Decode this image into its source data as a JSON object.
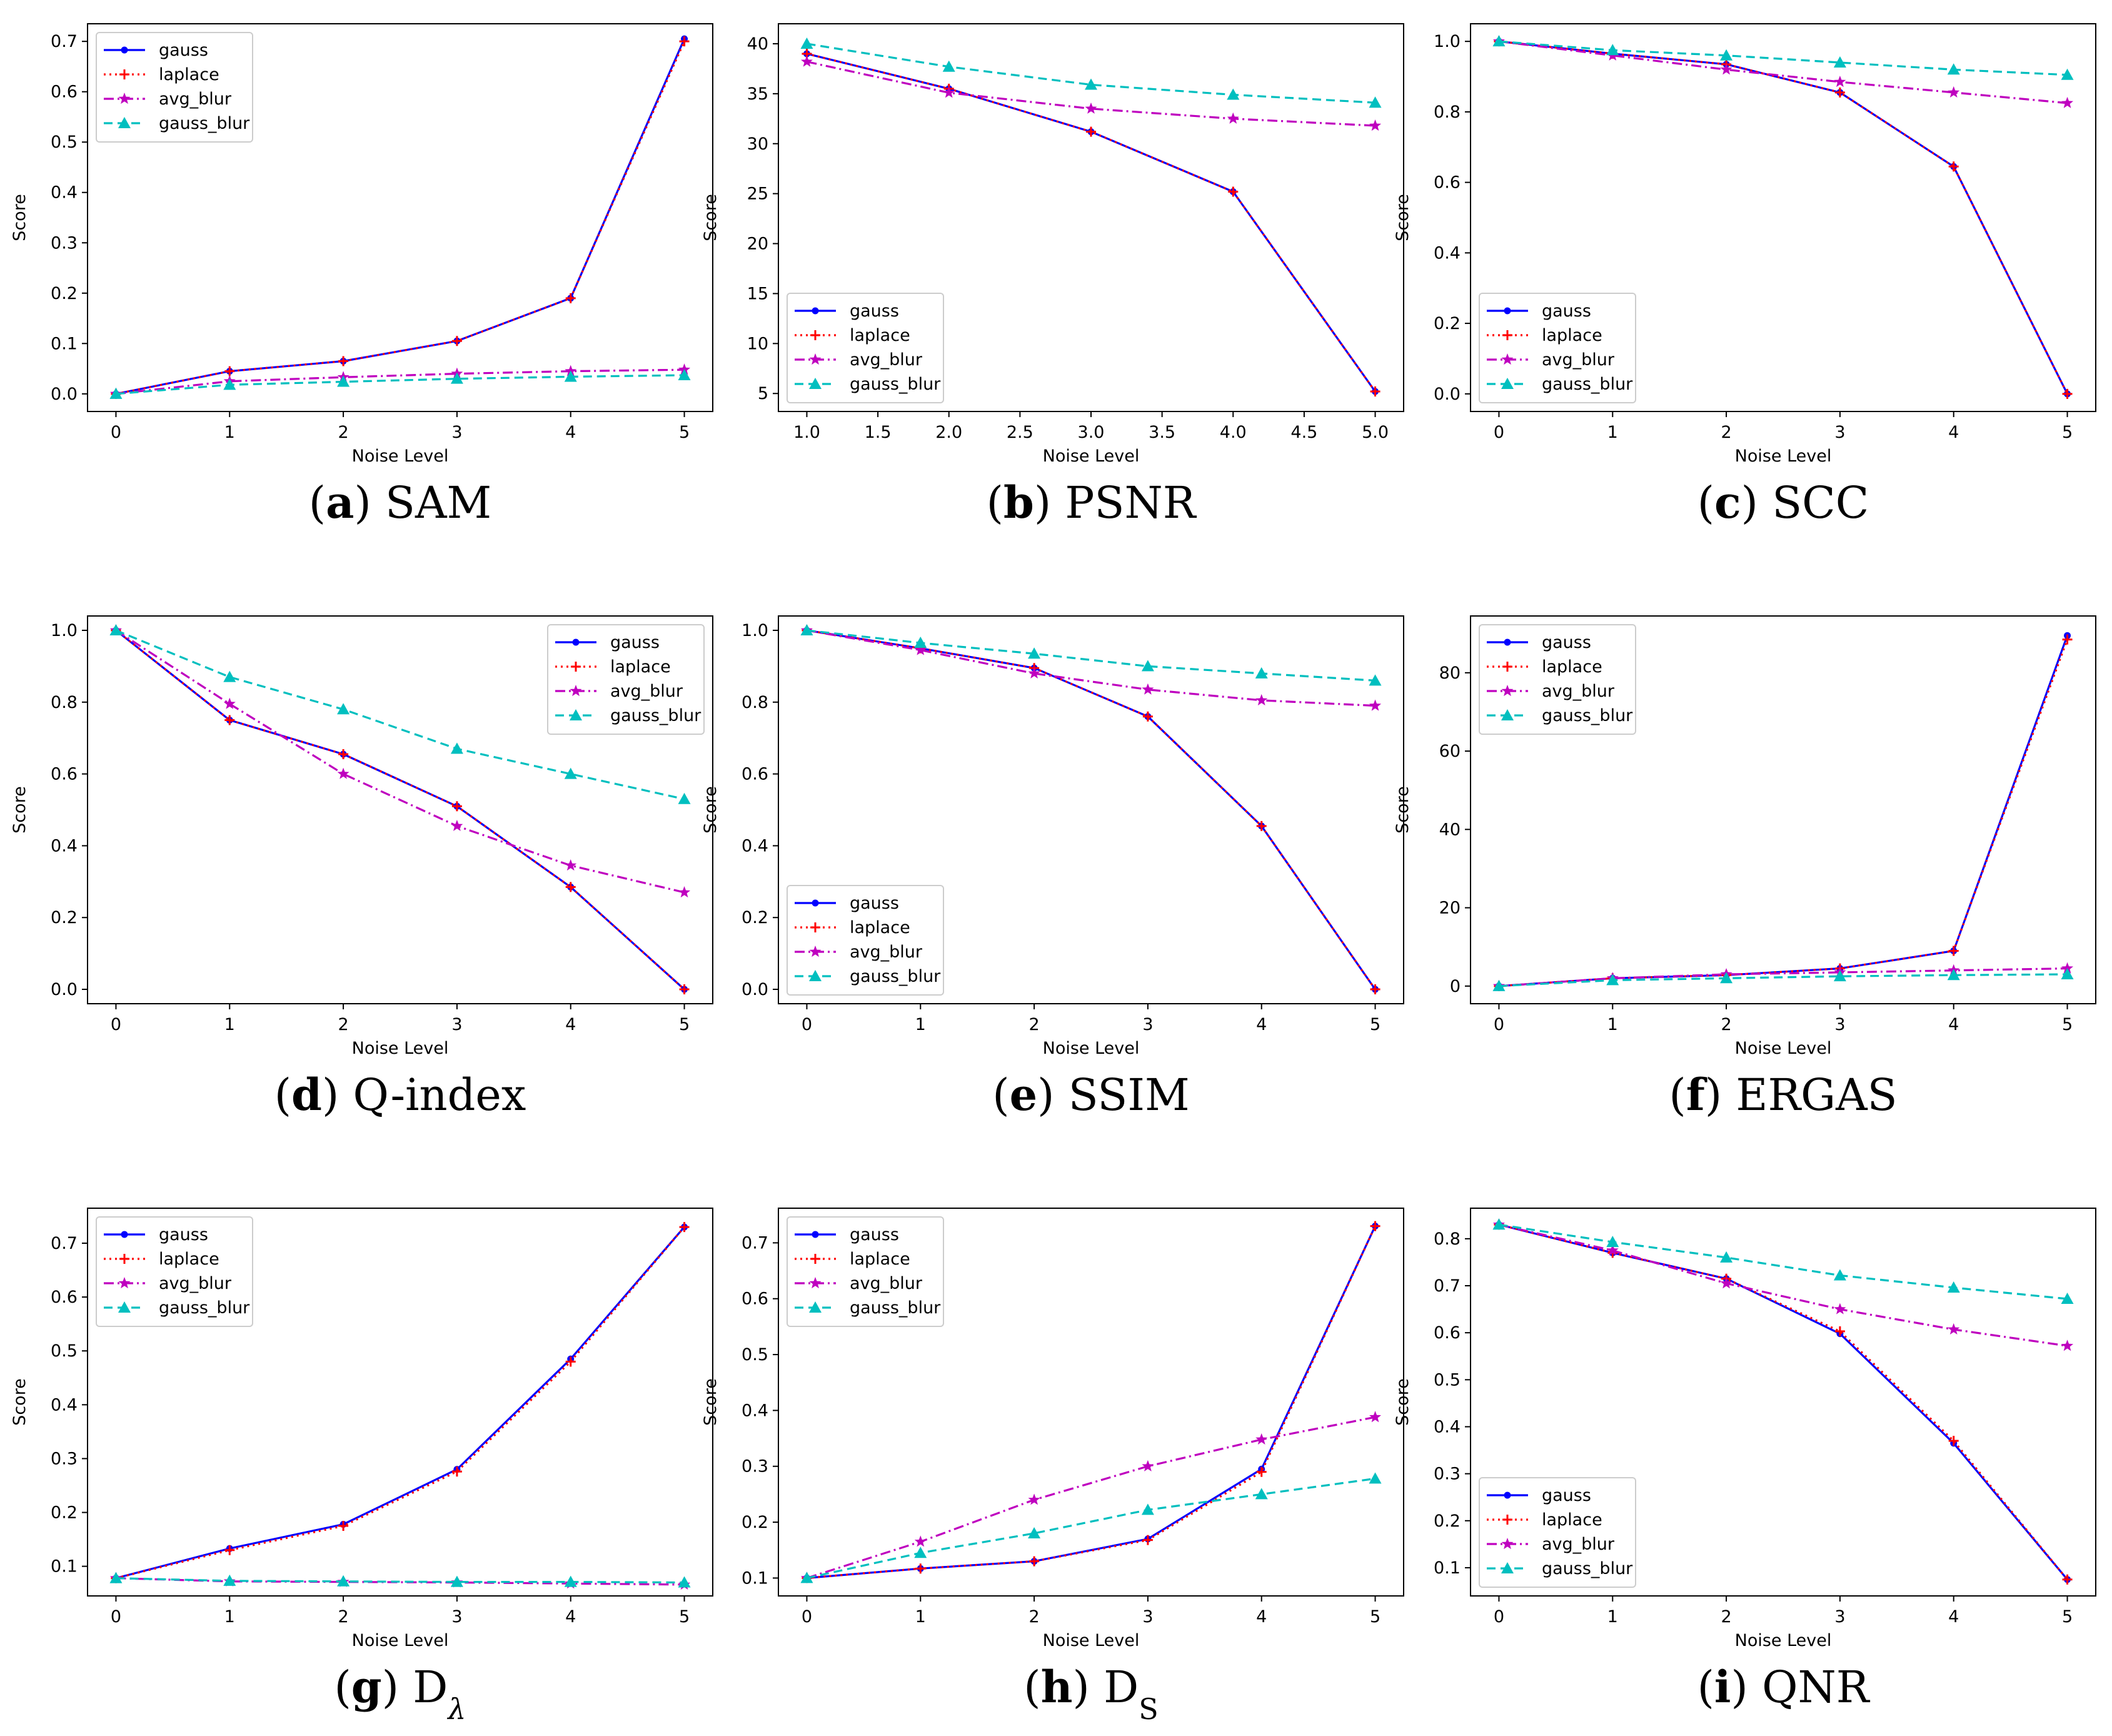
{
  "figure": {
    "colors": {
      "gauss": "#0000ff",
      "laplace": "#ff0000",
      "avg_blur": "#bf00bf",
      "gauss_blur": "#00bfbf"
    },
    "series_names": [
      "gauss",
      "laplace",
      "avg_blur",
      "gauss_blur"
    ]
  },
  "chart_data": [
    {
      "id": "a",
      "type": "line",
      "caption_letter": "(a)",
      "caption_text": " SAM",
      "xlabel": "Noise Level",
      "ylabel": "Score",
      "xlim": [
        -0.25,
        5.25
      ],
      "ylim": [
        -0.035,
        0.735
      ],
      "xticks": [
        0,
        1,
        2,
        3,
        4,
        5
      ],
      "xtick_labels": [
        "0",
        "1",
        "2",
        "3",
        "4",
        "5"
      ],
      "yticks": [
        0.0,
        0.1,
        0.2,
        0.3,
        0.4,
        0.5,
        0.6,
        0.7
      ],
      "ytick_labels": [
        "0.0",
        "0.1",
        "0.2",
        "0.3",
        "0.4",
        "0.5",
        "0.6",
        "0.7"
      ],
      "legend": "top-left",
      "x": [
        0,
        1,
        2,
        3,
        4,
        5
      ],
      "series": [
        {
          "name": "gauss",
          "values": [
            0.0,
            0.045,
            0.065,
            0.105,
            0.19,
            0.705
          ]
        },
        {
          "name": "laplace",
          "values": [
            0.0,
            0.045,
            0.065,
            0.105,
            0.19,
            0.7
          ]
        },
        {
          "name": "avg_blur",
          "values": [
            0.0,
            0.025,
            0.033,
            0.04,
            0.045,
            0.048
          ]
        },
        {
          "name": "gauss_blur",
          "values": [
            0.0,
            0.018,
            0.024,
            0.03,
            0.034,
            0.037
          ]
        }
      ]
    },
    {
      "id": "b",
      "type": "line",
      "caption_letter": "(b)",
      "caption_text": " PSNR",
      "xlabel": "Noise Level",
      "ylabel": "Score",
      "xlim": [
        0.8,
        5.2
      ],
      "ylim": [
        3.2,
        42.0
      ],
      "xticks": [
        1.0,
        1.5,
        2.0,
        2.5,
        3.0,
        3.5,
        4.0,
        4.5,
        5.0
      ],
      "xtick_labels": [
        "1.0",
        "1.5",
        "2.0",
        "2.5",
        "3.0",
        "3.5",
        "4.0",
        "4.5",
        "5.0"
      ],
      "yticks": [
        5,
        10,
        15,
        20,
        25,
        30,
        35,
        40
      ],
      "ytick_labels": [
        "5",
        "10",
        "15",
        "20",
        "25",
        "30",
        "35",
        "40"
      ],
      "legend": "bottom-left",
      "x": [
        1,
        2,
        3,
        4,
        5
      ],
      "series": [
        {
          "name": "gauss",
          "values": [
            39.0,
            35.5,
            31.2,
            25.2,
            5.2
          ]
        },
        {
          "name": "laplace",
          "values": [
            39.0,
            35.5,
            31.2,
            25.2,
            5.2
          ]
        },
        {
          "name": "avg_blur",
          "values": [
            38.2,
            35.1,
            33.5,
            32.5,
            31.8
          ]
        },
        {
          "name": "gauss_blur",
          "values": [
            40.0,
            37.7,
            35.9,
            34.9,
            34.1
          ]
        }
      ]
    },
    {
      "id": "c",
      "type": "line",
      "caption_letter": "(c)",
      "caption_text": " SCC",
      "xlabel": "Noise Level",
      "ylabel": "Score",
      "xlim": [
        -0.25,
        5.25
      ],
      "ylim": [
        -0.05,
        1.05
      ],
      "xticks": [
        0,
        1,
        2,
        3,
        4,
        5
      ],
      "xtick_labels": [
        "0",
        "1",
        "2",
        "3",
        "4",
        "5"
      ],
      "yticks": [
        0.0,
        0.2,
        0.4,
        0.6,
        0.8,
        1.0
      ],
      "ytick_labels": [
        "0.0",
        "0.2",
        "0.4",
        "0.6",
        "0.8",
        "1.0"
      ],
      "legend": "bottom-left",
      "x": [
        0,
        1,
        2,
        3,
        4,
        5
      ],
      "series": [
        {
          "name": "gauss",
          "values": [
            1.0,
            0.965,
            0.935,
            0.855,
            0.645,
            0.0
          ]
        },
        {
          "name": "laplace",
          "values": [
            1.0,
            0.965,
            0.935,
            0.855,
            0.645,
            0.0
          ]
        },
        {
          "name": "avg_blur",
          "values": [
            1.0,
            0.96,
            0.92,
            0.885,
            0.855,
            0.825
          ]
        },
        {
          "name": "gauss_blur",
          "values": [
            1.0,
            0.975,
            0.96,
            0.94,
            0.92,
            0.905
          ]
        }
      ]
    },
    {
      "id": "d",
      "type": "line",
      "caption_letter": "(d)",
      "caption_text": " Q-index",
      "xlabel": "Noise Level",
      "ylabel": "Score",
      "xlim": [
        -0.25,
        5.25
      ],
      "ylim": [
        -0.04,
        1.04
      ],
      "xticks": [
        0,
        1,
        2,
        3,
        4,
        5
      ],
      "xtick_labels": [
        "0",
        "1",
        "2",
        "3",
        "4",
        "5"
      ],
      "yticks": [
        0.0,
        0.2,
        0.4,
        0.6,
        0.8,
        1.0
      ],
      "ytick_labels": [
        "0.0",
        "0.2",
        "0.4",
        "0.6",
        "0.8",
        "1.0"
      ],
      "legend": "top-right",
      "x": [
        0,
        1,
        2,
        3,
        4,
        5
      ],
      "series": [
        {
          "name": "gauss",
          "values": [
            1.0,
            0.75,
            0.655,
            0.51,
            0.285,
            0.0
          ]
        },
        {
          "name": "laplace",
          "values": [
            1.0,
            0.75,
            0.655,
            0.51,
            0.285,
            0.0
          ]
        },
        {
          "name": "avg_blur",
          "values": [
            1.0,
            0.795,
            0.6,
            0.455,
            0.345,
            0.27
          ]
        },
        {
          "name": "gauss_blur",
          "values": [
            1.0,
            0.87,
            0.78,
            0.67,
            0.6,
            0.53
          ]
        }
      ]
    },
    {
      "id": "e",
      "type": "line",
      "caption_letter": "(e)",
      "caption_text": " SSIM",
      "xlabel": "Noise Level",
      "ylabel": "Score",
      "xlim": [
        -0.25,
        5.25
      ],
      "ylim": [
        -0.04,
        1.04
      ],
      "xticks": [
        0,
        1,
        2,
        3,
        4,
        5
      ],
      "xtick_labels": [
        "0",
        "1",
        "2",
        "3",
        "4",
        "5"
      ],
      "yticks": [
        0.0,
        0.2,
        0.4,
        0.6,
        0.8,
        1.0
      ],
      "ytick_labels": [
        "0.0",
        "0.2",
        "0.4",
        "0.6",
        "0.8",
        "1.0"
      ],
      "legend": "bottom-left",
      "x": [
        0,
        1,
        2,
        3,
        4,
        5
      ],
      "series": [
        {
          "name": "gauss",
          "values": [
            1.0,
            0.95,
            0.895,
            0.76,
            0.455,
            0.0
          ]
        },
        {
          "name": "laplace",
          "values": [
            1.0,
            0.95,
            0.895,
            0.76,
            0.455,
            0.0
          ]
        },
        {
          "name": "avg_blur",
          "values": [
            1.0,
            0.945,
            0.88,
            0.835,
            0.805,
            0.79
          ]
        },
        {
          "name": "gauss_blur",
          "values": [
            1.0,
            0.965,
            0.935,
            0.9,
            0.88,
            0.86
          ]
        }
      ]
    },
    {
      "id": "f",
      "type": "line",
      "caption_letter": "(f)",
      "caption_text": " ERGAS",
      "xlabel": "Noise Level",
      "ylabel": "Score",
      "xlim": [
        -0.25,
        5.25
      ],
      "ylim": [
        -4.5,
        94.5
      ],
      "xticks": [
        0,
        1,
        2,
        3,
        4,
        5
      ],
      "xtick_labels": [
        "0",
        "1",
        "2",
        "3",
        "4",
        "5"
      ],
      "yticks": [
        0,
        20,
        40,
        60,
        80
      ],
      "ytick_labels": [
        "0",
        "20",
        "40",
        "60",
        "80"
      ],
      "legend": "top-left",
      "x": [
        0,
        1,
        2,
        3,
        4,
        5
      ],
      "series": [
        {
          "name": "gauss",
          "values": [
            0.0,
            2.0,
            2.8,
            4.5,
            9.0,
            89.5
          ]
        },
        {
          "name": "laplace",
          "values": [
            0.0,
            2.0,
            2.8,
            4.5,
            9.0,
            88.5
          ]
        },
        {
          "name": "avg_blur",
          "values": [
            0.0,
            2.0,
            3.0,
            3.5,
            4.0,
            4.5
          ]
        },
        {
          "name": "gauss_blur",
          "values": [
            0.0,
            1.5,
            2.0,
            2.5,
            2.8,
            3.0
          ]
        }
      ]
    },
    {
      "id": "g",
      "type": "line",
      "caption_letter": "(g)",
      "caption_text": " D",
      "caption_sub": "λ",
      "xlabel": "Noise Level",
      "ylabel": "Score",
      "xlim": [
        -0.25,
        5.25
      ],
      "ylim": [
        0.045,
        0.765
      ],
      "xticks": [
        0,
        1,
        2,
        3,
        4,
        5
      ],
      "xtick_labels": [
        "0",
        "1",
        "2",
        "3",
        "4",
        "5"
      ],
      "yticks": [
        0.1,
        0.2,
        0.3,
        0.4,
        0.5,
        0.6,
        0.7
      ],
      "ytick_labels": [
        "0.1",
        "0.2",
        "0.3",
        "0.4",
        "0.5",
        "0.6",
        "0.7"
      ],
      "legend": "top-left",
      "x": [
        0,
        1,
        2,
        3,
        4,
        5
      ],
      "series": [
        {
          "name": "gauss",
          "values": [
            0.078,
            0.133,
            0.178,
            0.28,
            0.485,
            0.73
          ]
        },
        {
          "name": "laplace",
          "values": [
            0.078,
            0.13,
            0.175,
            0.276,
            0.48,
            0.73
          ]
        },
        {
          "name": "avg_blur",
          "values": [
            0.078,
            0.072,
            0.071,
            0.07,
            0.068,
            0.066
          ]
        },
        {
          "name": "gauss_blur",
          "values": [
            0.078,
            0.073,
            0.072,
            0.071,
            0.071,
            0.07
          ]
        }
      ]
    },
    {
      "id": "h",
      "type": "line",
      "caption_letter": "(h)",
      "caption_text": " D",
      "caption_sub": "S",
      "xlabel": "Noise Level",
      "ylabel": "Score",
      "xlim": [
        -0.25,
        5.25
      ],
      "ylim": [
        0.068,
        0.762
      ],
      "xticks": [
        0,
        1,
        2,
        3,
        4,
        5
      ],
      "xtick_labels": [
        "0",
        "1",
        "2",
        "3",
        "4",
        "5"
      ],
      "yticks": [
        0.1,
        0.2,
        0.3,
        0.4,
        0.5,
        0.6,
        0.7
      ],
      "ytick_labels": [
        "0.1",
        "0.2",
        "0.3",
        "0.4",
        "0.5",
        "0.6",
        "0.7"
      ],
      "legend": "top-left",
      "x": [
        0,
        1,
        2,
        3,
        4,
        5
      ],
      "series": [
        {
          "name": "gauss",
          "values": [
            0.1,
            0.117,
            0.13,
            0.17,
            0.295,
            0.73
          ]
        },
        {
          "name": "laplace",
          "values": [
            0.1,
            0.117,
            0.13,
            0.168,
            0.29,
            0.73
          ]
        },
        {
          "name": "avg_blur",
          "values": [
            0.1,
            0.165,
            0.24,
            0.3,
            0.348,
            0.388
          ]
        },
        {
          "name": "gauss_blur",
          "values": [
            0.1,
            0.145,
            0.18,
            0.222,
            0.25,
            0.278
          ]
        }
      ]
    },
    {
      "id": "i",
      "type": "line",
      "caption_letter": "(i)",
      "caption_text": " QNR",
      "xlabel": "Noise Level",
      "ylabel": "Score",
      "xlim": [
        -0.25,
        5.25
      ],
      "ylim": [
        0.04,
        0.865
      ],
      "xticks": [
        0,
        1,
        2,
        3,
        4,
        5
      ],
      "xtick_labels": [
        "0",
        "1",
        "2",
        "3",
        "4",
        "5"
      ],
      "yticks": [
        0.1,
        0.2,
        0.3,
        0.4,
        0.5,
        0.6,
        0.7,
        0.8
      ],
      "ytick_labels": [
        "0.1",
        "0.2",
        "0.3",
        "0.4",
        "0.5",
        "0.6",
        "0.7",
        "0.8"
      ],
      "legend": "bottom-left",
      "x": [
        0,
        1,
        2,
        3,
        4,
        5
      ],
      "series": [
        {
          "name": "gauss",
          "values": [
            0.83,
            0.77,
            0.715,
            0.598,
            0.365,
            0.075
          ]
        },
        {
          "name": "laplace",
          "values": [
            0.83,
            0.77,
            0.715,
            0.603,
            0.37,
            0.075
          ]
        },
        {
          "name": "avg_blur",
          "values": [
            0.83,
            0.775,
            0.705,
            0.65,
            0.607,
            0.572
          ]
        },
        {
          "name": "gauss_blur",
          "values": [
            0.83,
            0.793,
            0.76,
            0.722,
            0.696,
            0.672
          ]
        }
      ]
    }
  ]
}
